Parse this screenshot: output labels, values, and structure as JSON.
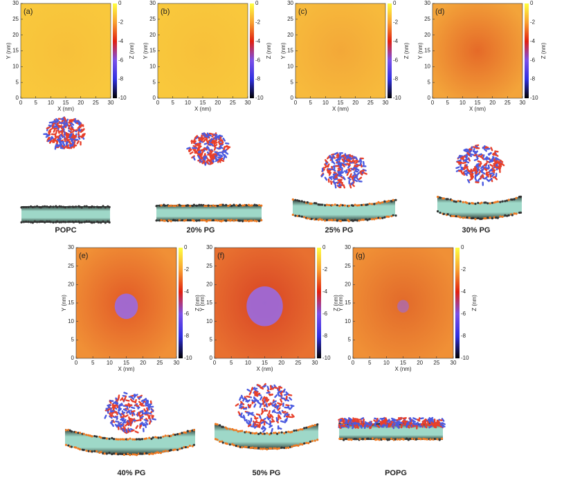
{
  "axes": {
    "x_label": "X (nm)",
    "y_label": "Y (nm)",
    "z_label": "Z (nm)",
    "xticks": [
      0,
      5,
      10,
      15,
      20,
      25,
      30
    ],
    "yticks": [
      0,
      5,
      10,
      15,
      20,
      25,
      30
    ],
    "zticks": [
      0,
      -2,
      -4,
      -6,
      -8,
      -10
    ]
  },
  "panels": [
    {
      "label": "(a)",
      "caption": "POPC"
    },
    {
      "label": "(b)",
      "caption": "20% PG"
    },
    {
      "label": "(c)",
      "caption": "25% PG"
    },
    {
      "label": "(d)",
      "caption": "30% PG"
    },
    {
      "label": "(e)",
      "caption": "40% PG"
    },
    {
      "label": "(f)",
      "caption": "50% PG"
    },
    {
      "label": "(g)",
      "caption": "POPG"
    }
  ]
}
